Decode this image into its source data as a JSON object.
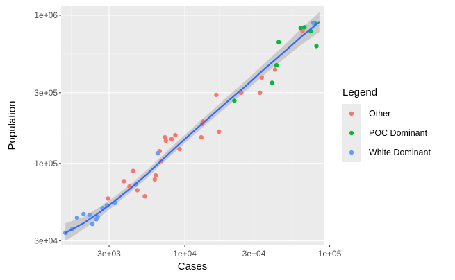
{
  "chart_data": {
    "type": "scatter",
    "title": "",
    "xlabel": "Cases",
    "ylabel": "Population",
    "x_scale": "log10",
    "y_scale": "log10",
    "xlim": [
      1400,
      92000
    ],
    "ylim": [
      28000,
      1150000
    ],
    "x_ticks": [
      {
        "value": 3000,
        "label": "3e+03"
      },
      {
        "value": 10000,
        "label": "1e+04"
      },
      {
        "value": 30000,
        "label": "3e+04"
      },
      {
        "value": 100000,
        "label": "1e+05"
      }
    ],
    "y_ticks": [
      {
        "value": 30000,
        "label": "3e+04"
      },
      {
        "value": 100000,
        "label": "1e+05"
      },
      {
        "value": 300000,
        "label": "3e+05"
      },
      {
        "value": 1000000,
        "label": "1e+06"
      }
    ],
    "grid": true,
    "legend": {
      "title": "Legend",
      "position": "right",
      "entries": [
        {
          "name": "Other",
          "color": "#F8766D"
        },
        {
          "name": "POC Dominant",
          "color": "#00BA38"
        },
        {
          "name": "White Dominant",
          "color": "#619CFF"
        }
      ]
    },
    "series": [
      {
        "name": "Other",
        "color": "#F8766D",
        "points": [
          [
            2950,
            58000
          ],
          [
            3800,
            76000
          ],
          [
            4150,
            70000
          ],
          [
            4400,
            89000
          ],
          [
            5300,
            60000
          ],
          [
            4700,
            66000
          ],
          [
            6200,
            78000
          ],
          [
            6300,
            83000
          ],
          [
            6700,
            121000
          ],
          [
            6900,
            104000
          ],
          [
            7300,
            150000
          ],
          [
            7400,
            142000
          ],
          [
            8100,
            146000
          ],
          [
            8600,
            155000
          ],
          [
            9200,
            125000
          ],
          [
            13000,
            150000
          ],
          [
            13200,
            185000
          ],
          [
            13400,
            192000
          ],
          [
            16500,
            290000
          ],
          [
            17200,
            164000
          ],
          [
            24500,
            300000
          ],
          [
            33000,
            300000
          ],
          [
            34000,
            380000
          ],
          [
            42000,
            430000
          ],
          [
            65000,
            780000
          ]
        ]
      },
      {
        "name": "POC Dominant",
        "color": "#00BA38",
        "points": [
          [
            22000,
            265000
          ],
          [
            40000,
            350000
          ],
          [
            43000,
            460000
          ],
          [
            44500,
            660000
          ],
          [
            63000,
            820000
          ],
          [
            67000,
            830000
          ],
          [
            74000,
            780000
          ],
          [
            79000,
            880000
          ],
          [
            81000,
            620000
          ]
        ]
      },
      {
        "name": "White Dominant",
        "color": "#619CFF",
        "points": [
          [
            1500,
            34000
          ],
          [
            1670,
            36000
          ],
          [
            1800,
            43000
          ],
          [
            2000,
            45500
          ],
          [
            2200,
            45000
          ],
          [
            2300,
            39000
          ],
          [
            2450,
            42000
          ],
          [
            2500,
            43500
          ],
          [
            2700,
            50000
          ],
          [
            2900,
            52000
          ],
          [
            3300,
            54000
          ],
          [
            4600,
            72000
          ],
          [
            6500,
            117000
          ],
          [
            77000,
            890000
          ]
        ]
      }
    ],
    "trend": {
      "type": "smooth",
      "color": "#3366FF",
      "band_color": "#999999",
      "points": [
        {
          "x": 1500,
          "y": 34000,
          "lo": 30000,
          "hi": 39500
        },
        {
          "x": 2000,
          "y": 39500,
          "lo": 36000,
          "hi": 43500
        },
        {
          "x": 2600,
          "y": 47000,
          "lo": 43500,
          "hi": 51000
        },
        {
          "x": 3300,
          "y": 56000,
          "lo": 52500,
          "hi": 60000
        },
        {
          "x": 4300,
          "y": 69000,
          "lo": 65000,
          "hi": 73500
        },
        {
          "x": 5500,
          "y": 85000,
          "lo": 80000,
          "hi": 90500
        },
        {
          "x": 7000,
          "y": 106000,
          "lo": 100000,
          "hi": 113000
        },
        {
          "x": 9000,
          "y": 133000,
          "lo": 125000,
          "hi": 142000
        },
        {
          "x": 11500,
          "y": 165000,
          "lo": 155000,
          "hi": 176000
        },
        {
          "x": 15000,
          "y": 207000,
          "lo": 194000,
          "hi": 222000
        },
        {
          "x": 20000,
          "y": 265000,
          "lo": 246000,
          "hi": 286000
        },
        {
          "x": 27000,
          "y": 340000,
          "lo": 314000,
          "hi": 369000
        },
        {
          "x": 36000,
          "y": 440000,
          "lo": 403000,
          "hi": 480000
        },
        {
          "x": 48000,
          "y": 560000,
          "lo": 505000,
          "hi": 620000
        },
        {
          "x": 64000,
          "y": 720000,
          "lo": 635000,
          "hi": 815000
        },
        {
          "x": 85000,
          "y": 900000,
          "lo": 770000,
          "hi": 1050000
        }
      ]
    }
  }
}
